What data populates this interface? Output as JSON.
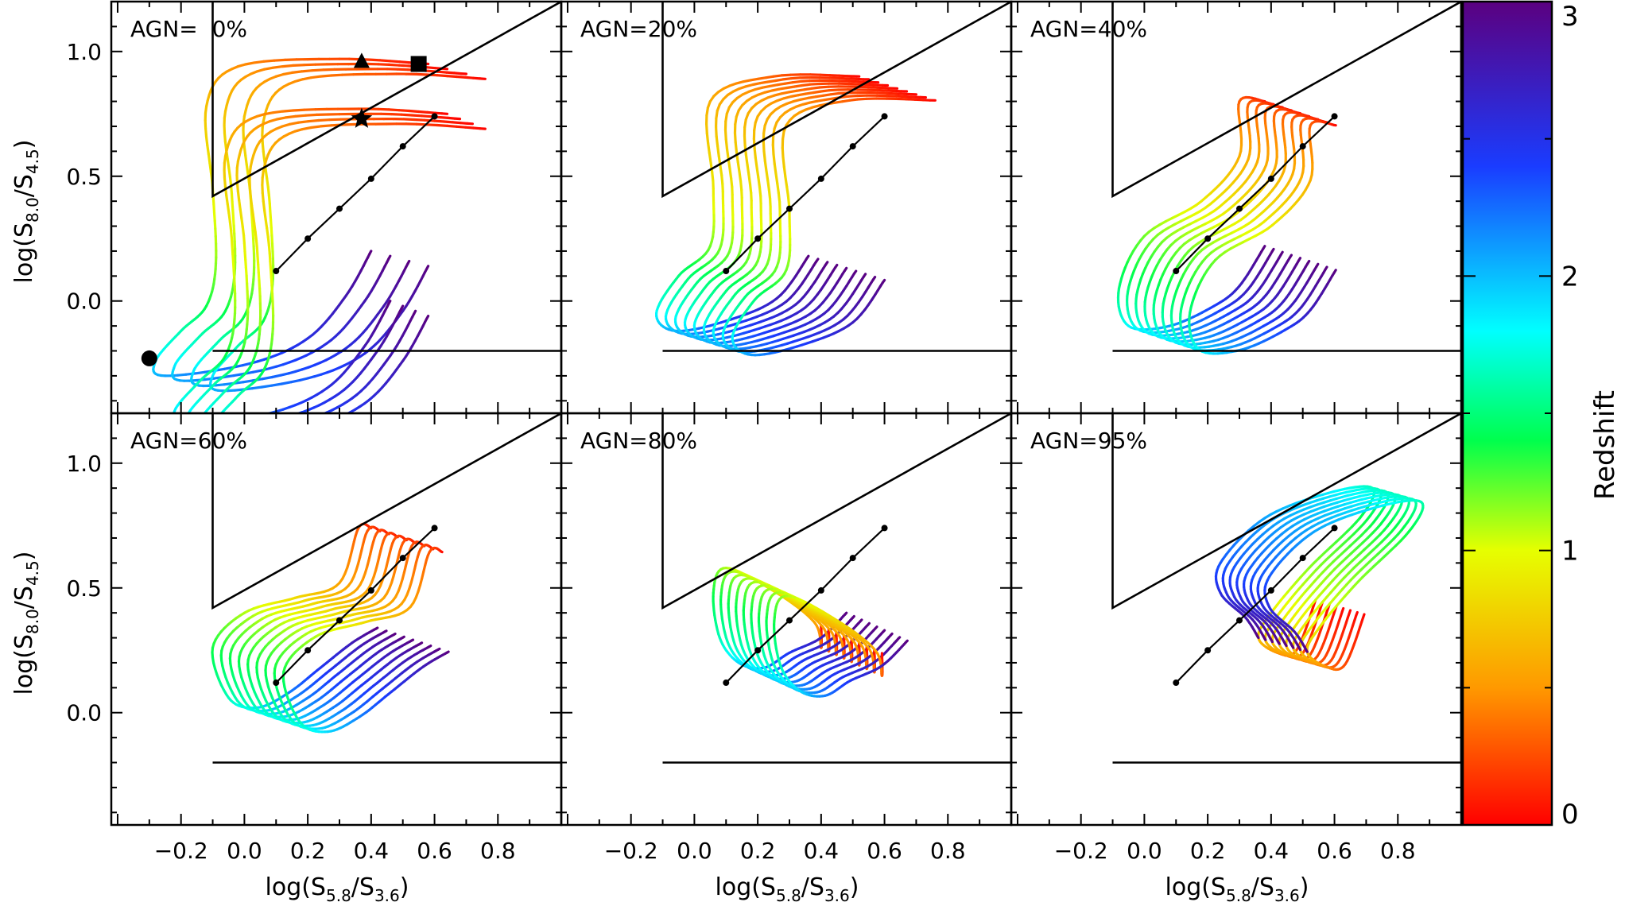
{
  "chart_data": {
    "type": "line",
    "layout": "2x3 grid with shared colorbar",
    "panels": [
      {
        "label": "AGN=  0%",
        "agn_fraction": 0
      },
      {
        "label": "AGN=20%",
        "agn_fraction": 20
      },
      {
        "label": "AGN=40%",
        "agn_fraction": 40
      },
      {
        "label": "AGN=60%",
        "agn_fraction": 60
      },
      {
        "label": "AGN=80%",
        "agn_fraction": 80
      },
      {
        "label": "AGN=95%",
        "agn_fraction": 95
      }
    ],
    "xlabel": {
      "pre": "log(S",
      "sub1": "5.8",
      "mid": "/S",
      "sub2": "3.6",
      "post": ")"
    },
    "ylabel": {
      "pre": "log(S",
      "sub1": "8.0",
      "mid": "/S",
      "sub2": "4.5",
      "post": ")"
    },
    "xlim": [
      -0.42,
      1.0
    ],
    "ylim": [
      -0.45,
      1.2
    ],
    "xticks": [
      -0.2,
      0.0,
      0.2,
      0.4,
      0.6,
      0.8
    ],
    "xtick_labels": [
      "−0.2",
      "0.0",
      "0.2",
      "0.4",
      "0.6",
      "0.8"
    ],
    "yticks": [
      0.0,
      0.5,
      1.0
    ],
    "ytick_labels": [
      "0.0",
      "0.5",
      "1.0"
    ],
    "agn_wedge": [
      [
        -0.1,
        1.2
      ],
      [
        -0.1,
        0.42
      ],
      [
        1.0,
        1.2
      ],
      [
        1.0,
        -0.2
      ],
      [
        -0.1,
        -0.2
      ]
    ],
    "power_law_locus": {
      "x": [
        0.1,
        0.2,
        0.3,
        0.4,
        0.5,
        0.6
      ],
      "y": [
        0.12,
        0.25,
        0.37,
        0.49,
        0.62,
        0.74
      ]
    },
    "colorbar": {
      "label": "Redshift",
      "range": [
        0,
        3
      ],
      "ticks": [
        0,
        1,
        2,
        3
      ],
      "tick_labels": [
        "0",
        "1",
        "2",
        "3"
      ]
    },
    "template_markers": [
      {
        "name": "circle",
        "x": -0.3,
        "y": -0.23
      },
      {
        "name": "triangle",
        "x": 0.37,
        "y": 0.96
      },
      {
        "name": "square",
        "x": 0.55,
        "y": 0.95
      },
      {
        "name": "star",
        "x": 0.37,
        "y": 0.73
      }
    ],
    "tracks_note": "Redshift tracks z=0 to 3 for a family of templates, coloured by redshift"
  }
}
